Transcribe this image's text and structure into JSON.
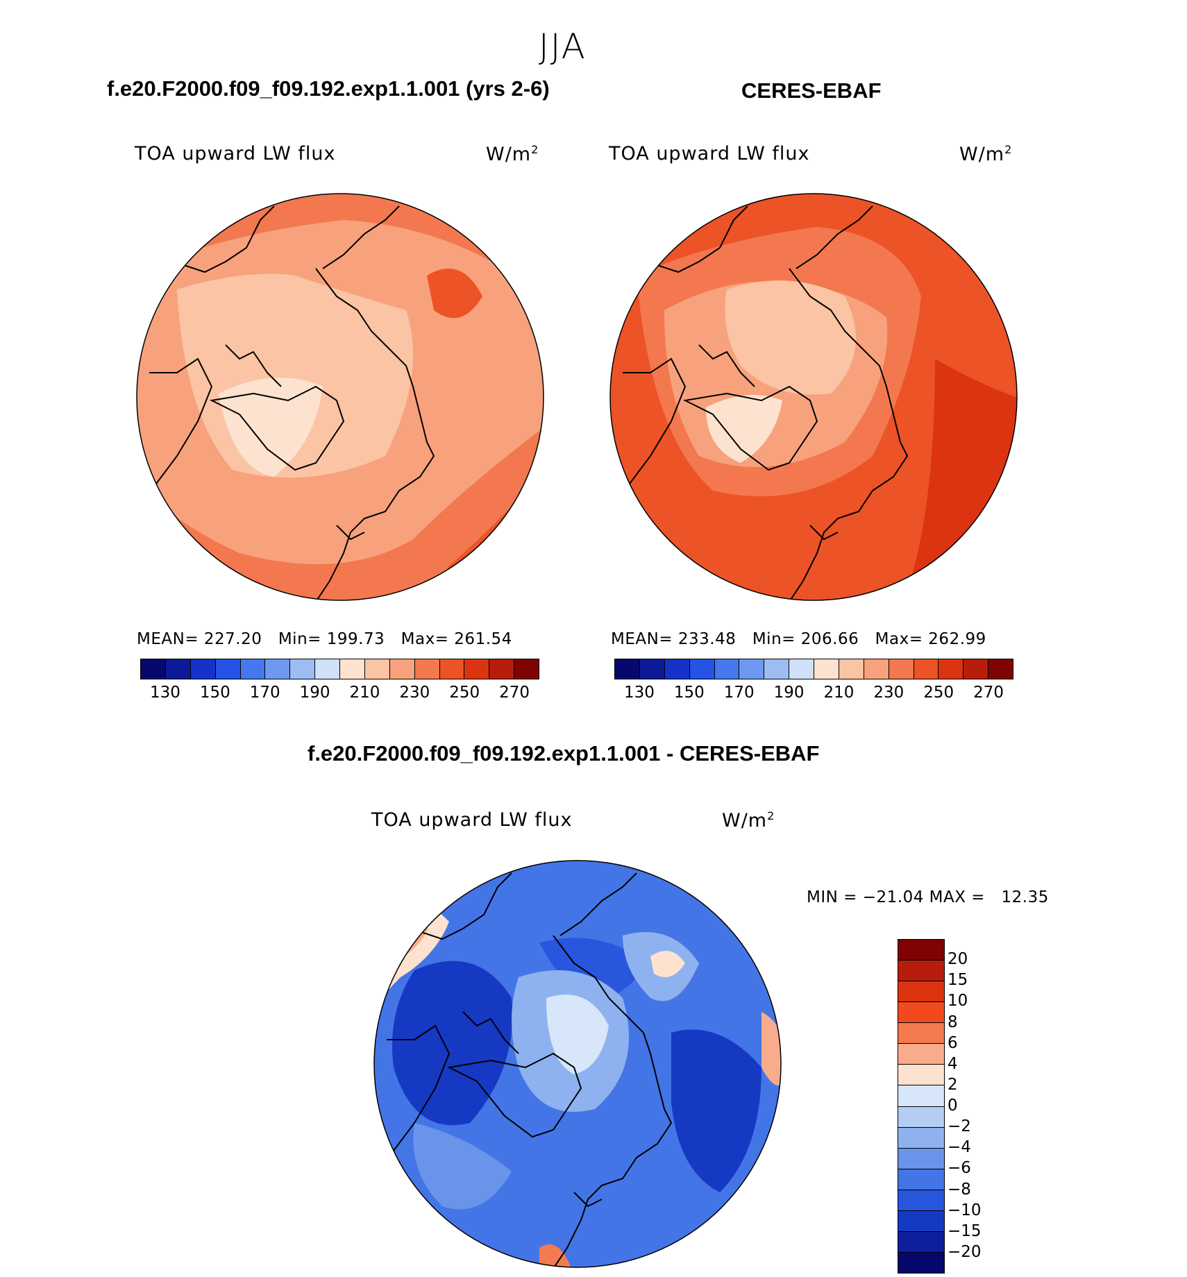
{
  "figure": {
    "season": "JJA",
    "panel_left": {
      "case_title": "f.e20.F2000.f09_f09.192.exp1.1.001 (yrs 2-6)",
      "variable": "TOA upward LW flux",
      "units": "W/m",
      "units_exp": "2",
      "mean_label": "MEAN=",
      "mean_value": "227.20",
      "min_label": "Min=",
      "min_value": "199.73",
      "max_label": "Max=",
      "max_value": "261.54"
    },
    "panel_right": {
      "case_title": "CERES-EBAF",
      "variable": "TOA upward LW flux",
      "units": "W/m",
      "units_exp": "2",
      "mean_label": "MEAN=",
      "mean_value": "233.48",
      "min_label": "Min=",
      "min_value": "206.66",
      "max_label": "Max=",
      "max_value": "262.99"
    },
    "panel_diff": {
      "case_title": "f.e20.F2000.f09_f09.192.exp1.1.001 - CERES-EBAF",
      "variable": "TOA upward LW flux",
      "units": "W/m",
      "units_exp": "2",
      "minmax_text": "MIN = −21.04 MAX =   12.35"
    }
  },
  "chart_data": [
    {
      "type": "heatmap",
      "title": "f.e20.F2000.f09_f09.192.exp1.1.001 (yrs 2-6)",
      "projection": "north polar stereographic",
      "variable": "TOA upward LW flux",
      "units": "W/m2",
      "mean": 227.2,
      "min": 199.73,
      "max": 261.54,
      "colorbar_ticks": [
        130,
        150,
        170,
        190,
        210,
        230,
        250,
        270
      ],
      "colorbar_levels": [
        130,
        140,
        150,
        160,
        170,
        180,
        190,
        200,
        210,
        220,
        230,
        240,
        250,
        260,
        270
      ],
      "colorbar_colors": [
        "#06086b",
        "#0c1a9a",
        "#1532c8",
        "#2453e6",
        "#4577ef",
        "#6d9af0",
        "#9dbdf2",
        "#cfe0f7",
        "#fde2cf",
        "#fbc4a4",
        "#f7a27c",
        "#f3784f",
        "#ec5326",
        "#dc3410",
        "#b81d0c",
        "#800303"
      ]
    },
    {
      "type": "heatmap",
      "title": "CERES-EBAF",
      "projection": "north polar stereographic",
      "variable": "TOA upward LW flux",
      "units": "W/m2",
      "mean": 233.48,
      "min": 206.66,
      "max": 262.99,
      "colorbar_ticks": [
        130,
        150,
        170,
        190,
        210,
        230,
        250,
        270
      ],
      "colorbar_levels": [
        130,
        140,
        150,
        160,
        170,
        180,
        190,
        200,
        210,
        220,
        230,
        240,
        250,
        260,
        270
      ],
      "colorbar_colors": [
        "#06086b",
        "#0c1a9a",
        "#1532c8",
        "#2453e6",
        "#4577ef",
        "#6d9af0",
        "#9dbdf2",
        "#cfe0f7",
        "#fde2cf",
        "#fbc4a4",
        "#f7a27c",
        "#f3784f",
        "#ec5326",
        "#dc3410",
        "#b81d0c",
        "#800303"
      ]
    },
    {
      "type": "heatmap",
      "title": "f.e20.F2000.f09_f09.192.exp1.1.001 - CERES-EBAF",
      "projection": "north polar stereographic",
      "variable": "TOA upward LW flux",
      "units": "W/m2",
      "min": -21.04,
      "max": 12.35,
      "colorbar_ticks": [
        "20",
        "15",
        "10",
        "8",
        "6",
        "4",
        "2",
        "0",
        "−2",
        "−4",
        "−6",
        "−8",
        "−10",
        "−15",
        "−20"
      ],
      "colorbar_colors": [
        "#800303",
        "#b81d0c",
        "#dc3410",
        "#f24a1e",
        "#f47a50",
        "#f9ac8c",
        "#fde2cf",
        "#d7e6f8",
        "#b3cdf3",
        "#8eb2ef",
        "#6994ea",
        "#4475e6",
        "#2856dd",
        "#1639c4",
        "#0d1f9c",
        "#06086b"
      ]
    }
  ]
}
